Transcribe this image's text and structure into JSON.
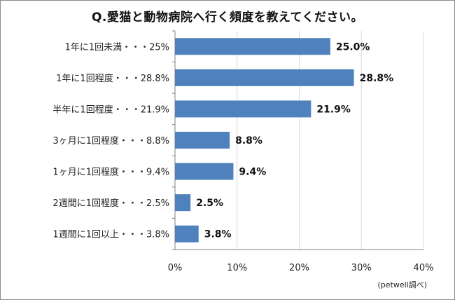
{
  "title": "Q.愛猫と動物病院へ行く頻度を教えてください。",
  "source": "(petwell調べ)",
  "colors": {
    "bar": "#4f81bd",
    "grid": "#d9d9d9",
    "axis": "#7f7f7f"
  },
  "chart_data": {
    "type": "bar",
    "orientation": "horizontal",
    "title": "Q.愛猫と動物病院へ行く頻度を教えてください。",
    "categories": [
      "1年に1回未満・・・25%",
      "1年に1回程度・・・28.8%",
      "半年に1回程度・・・21.9%",
      "3ヶ月に1回程度・・・8.8%",
      "1ヶ月に1回程度・・・9.4%",
      "2週間に1回程度・・・2.5%",
      "1週間に1回以上・・・3.8%"
    ],
    "values": [
      25.0,
      28.8,
      21.9,
      8.8,
      9.4,
      2.5,
      3.8
    ],
    "value_labels": [
      "25.0%",
      "28.8%",
      "21.9%",
      "8.8%",
      "9.4%",
      "2.5%",
      "3.8%"
    ],
    "xlim": [
      0,
      40
    ],
    "xticks": [
      0,
      10,
      20,
      30,
      40
    ],
    "xtick_labels": [
      "0%",
      "10%",
      "20%",
      "30%",
      "40%"
    ],
    "grid": true,
    "xlabel": "",
    "ylabel": ""
  }
}
